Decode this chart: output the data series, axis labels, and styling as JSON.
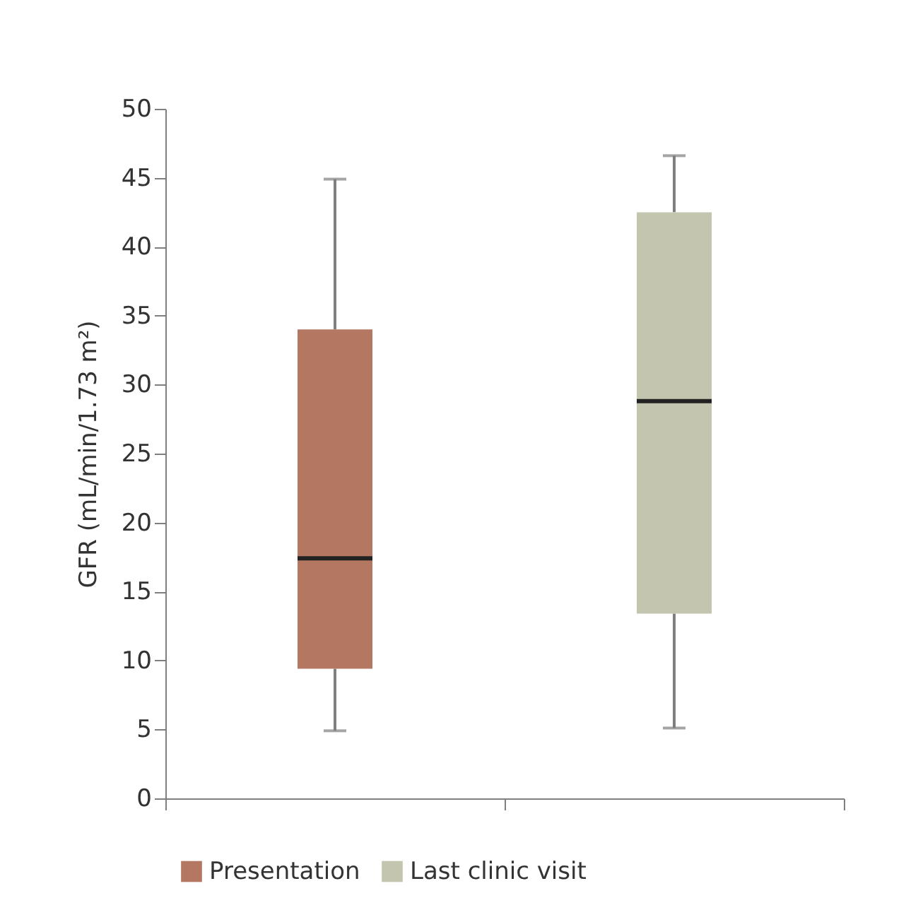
{
  "chart_data": {
    "type": "box",
    "categories": [
      null,
      null
    ],
    "ylabel": "GFR (mL/min/1.73 m²)",
    "ylim": [
      0,
      50
    ],
    "yticks": [
      0,
      5,
      10,
      15,
      20,
      25,
      30,
      35,
      40,
      45,
      50
    ],
    "tick_labels": "y",
    "legend": "bottom",
    "series": [
      {
        "name": "Presentation",
        "color": "#b37762",
        "boxes": [
          {
            "low": 4.9,
            "q1": 9.4,
            "median": 17.4,
            "q3": 34.0,
            "high": 44.9
          },
          null
        ]
      },
      {
        "name": "Last clinic visit",
        "color": "#c3c5ae",
        "boxes": [
          null,
          {
            "low": 5.1,
            "q1": 13.4,
            "median": 28.8,
            "q3": 42.5,
            "high": 46.6
          }
        ]
      }
    ]
  }
}
